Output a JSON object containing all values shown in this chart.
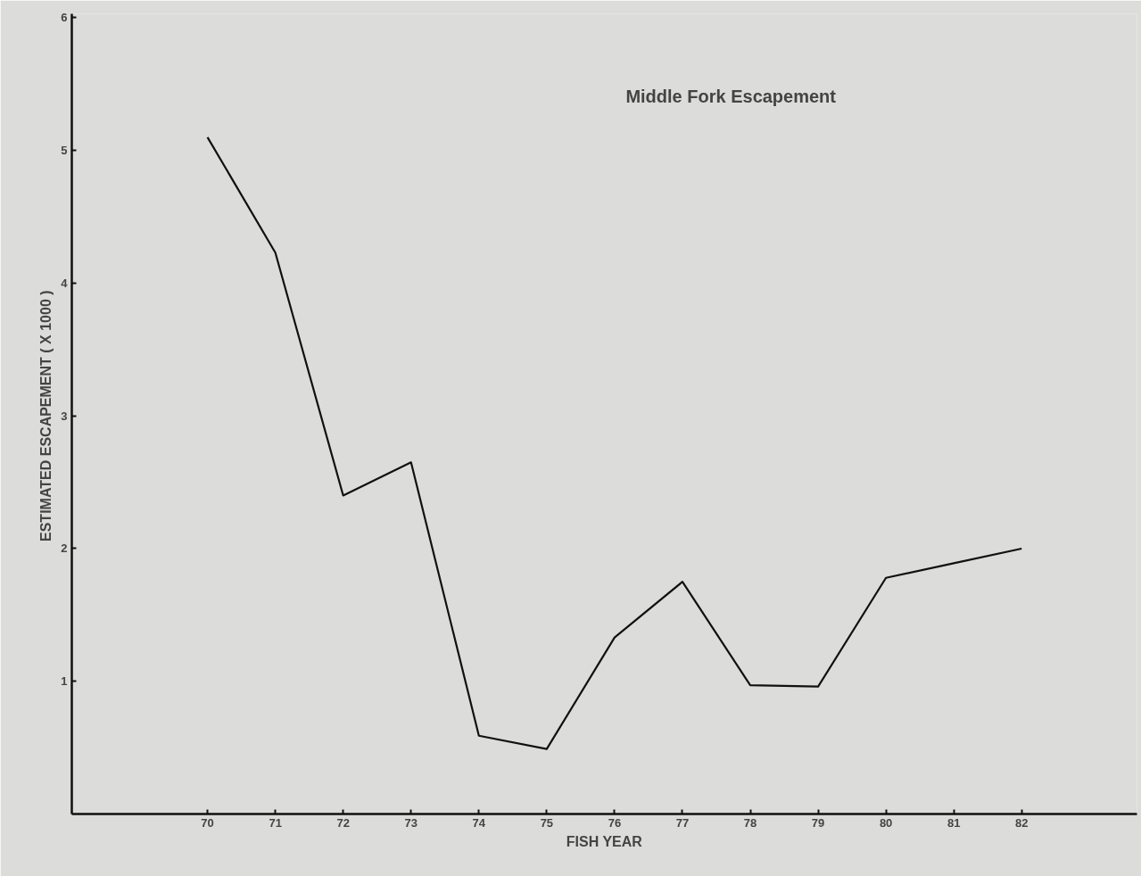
{
  "chart_data": {
    "type": "line",
    "title": "Middle Fork Escapement",
    "xlabel": "FISH YEAR",
    "ylabel": "ESTIMATED  ESCAPEMENT ( X 1000 )",
    "x": [
      70,
      71,
      72,
      73,
      74,
      75,
      76,
      77,
      78,
      79,
      80,
      81,
      82
    ],
    "series": [
      {
        "color": "#111111",
        "values": [
          5.1,
          4.23,
          2.4,
          2.65,
          0.59,
          0.49,
          1.33,
          1.75,
          0.97,
          0.96,
          1.78,
          1.89,
          2.0
        ]
      }
    ],
    "xlim": [
      68,
      83.7
    ],
    "xticks": [
      70,
      71,
      72,
      73,
      74,
      75,
      76,
      77,
      78,
      79,
      80,
      81,
      82
    ],
    "ylim": [
      0,
      6.03
    ],
    "yticks": [
      1,
      2,
      3,
      4,
      5,
      6
    ],
    "grid": false,
    "marker": "none",
    "line_style": "solid"
  }
}
